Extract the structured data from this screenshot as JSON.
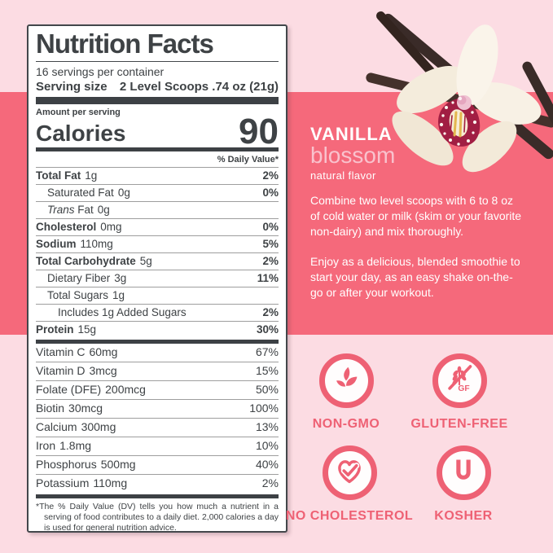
{
  "nutrition_label": {
    "title": "Nutrition Facts",
    "servings_per_container": "16 servings per container",
    "serving_size_label": "Serving size",
    "serving_size_value": "2 Level Scoops .74 oz (21g)",
    "amount_per_serving": "Amount per serving",
    "calories_label": "Calories",
    "calories_value": "90",
    "daily_value_header": "% Daily Value*",
    "nutrient_rows": [
      {
        "name": "Total Fat",
        "amount": "1g",
        "dv": "2%",
        "bold": true,
        "indent": 0
      },
      {
        "name": "Saturated Fat",
        "amount": "0g",
        "dv": "0%",
        "bold": false,
        "indent": 1
      },
      {
        "name": "Fat",
        "italic_prefix": "Trans",
        "amount": "0g",
        "dv": "",
        "bold": false,
        "indent": 1
      },
      {
        "name": "Cholesterol",
        "amount": "0mg",
        "dv": "0%",
        "bold": true,
        "indent": 0
      },
      {
        "name": "Sodium",
        "amount": "110mg",
        "dv": "5%",
        "bold": true,
        "indent": 0
      },
      {
        "name": "Total Carbohydrate",
        "amount": "5g",
        "dv": "2%",
        "bold": true,
        "indent": 0
      },
      {
        "name": "Dietary Fiber",
        "amount": "3g",
        "dv": "11%",
        "bold": false,
        "indent": 1
      },
      {
        "name": "Total Sugars",
        "amount": "1g",
        "dv": "",
        "bold": false,
        "indent": 1
      },
      {
        "name": "Includes 1g Added Sugars",
        "amount": "",
        "dv": "2%",
        "bold": false,
        "indent": 2
      },
      {
        "name": "Protein",
        "amount": "15g",
        "dv": "30%",
        "bold": true,
        "indent": 0
      }
    ],
    "vitamin_rows": [
      {
        "name": "Vitamin C",
        "amount": "60mg",
        "dv": "67%"
      },
      {
        "name": "Vitamin D",
        "amount": "3mcg",
        "dv": "15%"
      },
      {
        "name": "Folate (DFE)",
        "amount": "200mcg",
        "dv": "50%"
      },
      {
        "name": "Biotin",
        "amount": "30mcg",
        "dv": "100%"
      },
      {
        "name": "Calcium",
        "amount": "300mg",
        "dv": "13%"
      },
      {
        "name": "Iron",
        "amount": "1.8mg",
        "dv": "10%"
      },
      {
        "name": "Phosphorus",
        "amount": "500mg",
        "dv": "40%"
      },
      {
        "name": "Potassium",
        "amount": "110mg",
        "dv": "2%"
      }
    ],
    "footnote": "*The % Daily Value (DV) tells you how much a nutrient in a serving of food contributes to a daily diet.  2,000 calories a day is used for general nutrition advice."
  },
  "flavor": {
    "name": "VANILLA",
    "subname": "blossom",
    "descriptor": "natural flavor",
    "instructions": "Combine two level scoops with 6 to 8 oz of cold water or milk (skim or your favorite non-dairy) and mix thoroughly.",
    "enjoy": "Enjoy as a delicious, blended smoothie to start your day, as an easy shake on-the-go or after your workout."
  },
  "badges": [
    {
      "label": "NON-GMO",
      "icon": "sprout-icon"
    },
    {
      "label": "GLUTEN-FREE",
      "icon": "gluten-free-icon"
    },
    {
      "label": "NO CHOLESTEROL",
      "icon": "heart-check-icon"
    },
    {
      "label": "KOSHER",
      "icon": "kosher-u-icon"
    }
  ],
  "colors": {
    "coral_band": "#f5697b",
    "light_pink_background": "#fcdce3",
    "badge_coral": "#ee6174",
    "label_ink": "#3e4245",
    "blossom_pink": "#f9c2cd",
    "label_background": "#ffffff"
  }
}
